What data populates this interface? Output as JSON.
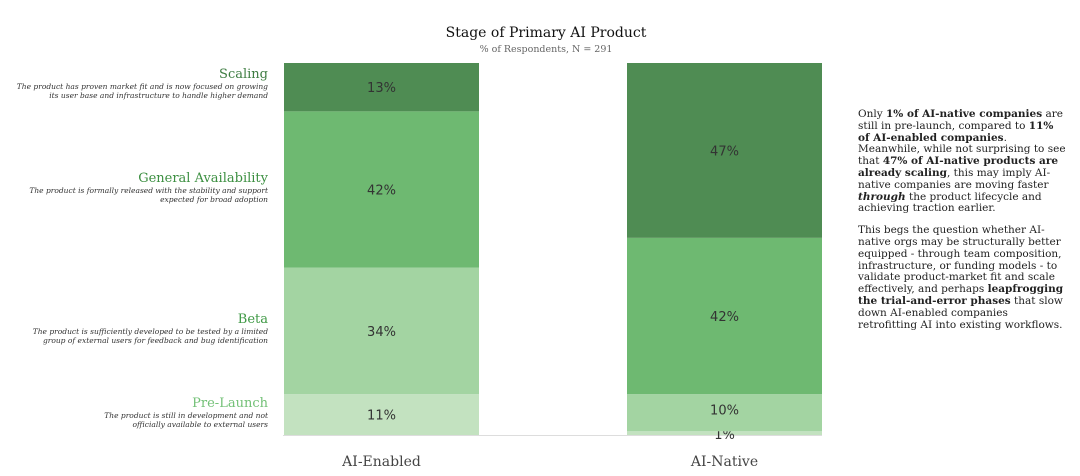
{
  "chart_data": {
    "type": "bar",
    "stacked": true,
    "title": "Stage of Primary AI Product",
    "subtitle": "% of Respondents, N = 291",
    "categories": [
      "AI-Enabled",
      "AI-Native"
    ],
    "ylim": [
      0,
      100
    ],
    "grid": false,
    "series": [
      {
        "name": "Pre-Launch",
        "values": [
          11,
          1
        ],
        "labels": [
          "11%",
          "1%"
        ],
        "color": "#c3e2c0",
        "text_color": "#72c076"
      },
      {
        "name": "Beta",
        "values": [
          34,
          10
        ],
        "labels": [
          "34%",
          "10%"
        ],
        "color": "#a3d4a2",
        "text_color": "#3f9945"
      },
      {
        "name": "General Availability",
        "values": [
          42,
          42
        ],
        "labels": [
          "42%",
          "42%"
        ],
        "color": "#6eb971",
        "text_color": "#3c8f41"
      },
      {
        "name": "Scaling",
        "values": [
          13,
          47
        ],
        "labels": [
          "13%",
          "47%"
        ],
        "color": "#4f8c53",
        "text_color": "#3e7d42"
      }
    ]
  },
  "stage_descriptions": {
    "Scaling": [
      "The product has proven market fit and is now focused on growing",
      "its user base and infrastructure to handle higher demand"
    ],
    "General Availability": [
      "The product is formally released with the stability and support",
      "expected for broad adoption"
    ],
    "Beta": [
      "The product is sufficiently developed to be tested by a limited",
      "group of external users for feedback and bug identification"
    ],
    "Pre-Launch": [
      "The product is still in development and not",
      "officially available to external users"
    ]
  },
  "commentary": {
    "p1": [
      {
        "t": "Only "
      },
      {
        "t": "1% of AI-native companies",
        "b": true
      },
      {
        "t": " are still in pre-launch, compared to "
      },
      {
        "t": "11% of AI-enabled companies",
        "b": true
      },
      {
        "t": ". Meanwhile, while not surprising to see that "
      },
      {
        "t": "47% of AI-native products are already scaling",
        "b": true
      },
      {
        "t": ", this may imply AI-native companies are moving faster "
      },
      {
        "t": "through",
        "b": true,
        "i": true
      },
      {
        "t": " the product lifecycle and achieving traction earlier."
      }
    ],
    "p2": [
      {
        "t": "This begs the question whether AI-native orgs may be structurally better equipped - through team composition, infrastructure, or funding models - to validate product-market fit and scale effectively, and perhaps "
      },
      {
        "t": "leapfrogging the trial-and-error phases",
        "b": true
      },
      {
        "t": " that slow down AI-enabled companies retrofitting AI into existing workflows."
      }
    ]
  }
}
